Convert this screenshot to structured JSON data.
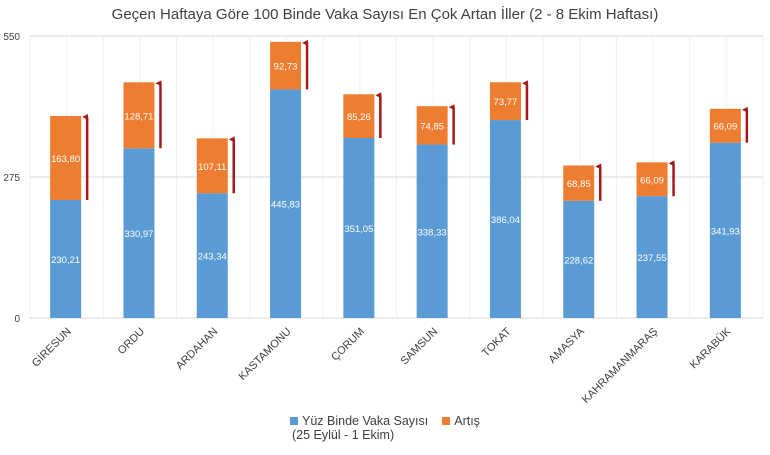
{
  "chart_data": {
    "type": "bar",
    "stacked": true,
    "title": "Geçen Haftaya Göre 100 Binde Vaka Sayısı En Çok Artan İller (2 - 8 Ekim Haftası)",
    "xlabel": "",
    "ylabel": "",
    "ylim": [
      0,
      550
    ],
    "yticks": [
      "0",
      "275",
      "550"
    ],
    "grid": true,
    "legend_position": "bottom",
    "categories": [
      "GİRESUN",
      "ORDU",
      "ARDAHAN",
      "KASTAMONU",
      "ÇORUM",
      "SAMSUN",
      "TOKAT",
      "AMASYA",
      "KAHRAMANMARAŞ",
      "KARABÜK"
    ],
    "series": [
      {
        "name": "Yüz Binde Vaka Sayısı",
        "name_line2": "(25 Eylül - 1 Ekim)",
        "color": "#5B9BD5",
        "values": [
          230.21,
          330.97,
          243.34,
          445.83,
          351.05,
          338.33,
          386.04,
          228.62,
          237.55,
          341.93
        ],
        "labels": [
          "230,21",
          "330,97",
          "243,34",
          "445,83",
          "351,05",
          "338,33",
          "386,04",
          "228,62",
          "237,55",
          "341,93"
        ]
      },
      {
        "name": "Artış",
        "color": "#ED7D31",
        "values": [
          163.8,
          128.71,
          107.11,
          92.73,
          85.26,
          74.85,
          73.77,
          68.85,
          66.09,
          66.09
        ],
        "labels": [
          "163,80",
          "128,71",
          "107,11",
          "92,73",
          "85,26",
          "74,85",
          "73,77",
          "68,85",
          "66,09",
          "66,09"
        ]
      }
    ],
    "annotations": {
      "arrow_icon": "up-arrow-icon",
      "arrow_color": "#A31A1A"
    }
  }
}
